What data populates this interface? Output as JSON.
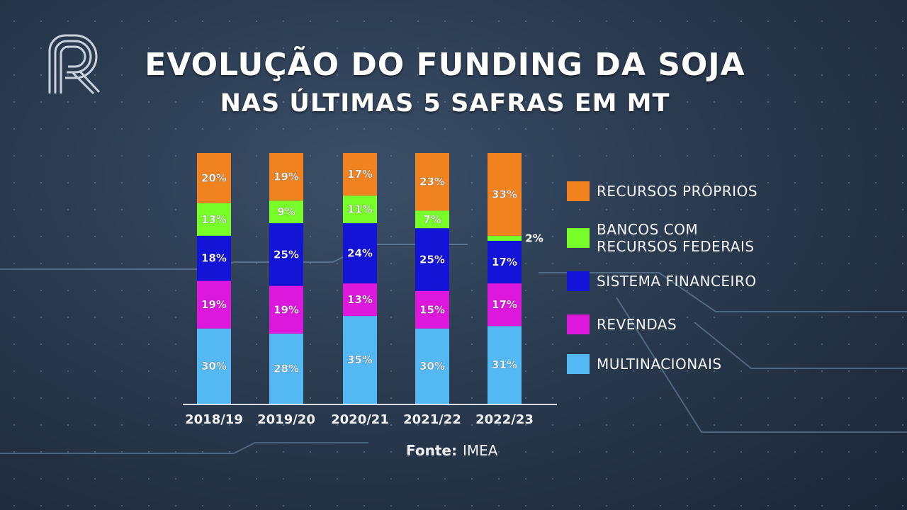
{
  "header": {
    "title_line1": "EVOLUÇÃO DO FUNDING DA SOJA",
    "title_line2": "NAS ÚLTIMAS 5 SAFRAS EM MT"
  },
  "logo": {
    "icon": "r-channel-logo-icon"
  },
  "source": {
    "label": "Fonte:",
    "value": "IMEA"
  },
  "colors": {
    "recursos_proprios": "#f0821f",
    "bancos_federais": "#78ff2a",
    "sistema_financeiro": "#1414d6",
    "revendas": "#dd18dd",
    "multinacionais": "#54b9f2"
  },
  "chart_data": {
    "type": "bar",
    "stacked": true,
    "categories": [
      "2018/19",
      "2019/20",
      "2020/21",
      "2021/22",
      "2022/23"
    ],
    "series": [
      {
        "name": "MULTINACIONAIS",
        "color": "#54b9f2",
        "values": [
          30,
          28,
          35,
          30,
          31
        ],
        "labels": [
          "30%",
          "28%",
          "35%",
          "30%",
          "31%"
        ]
      },
      {
        "name": "REVENDAS",
        "color": "#dd18dd",
        "values": [
          19,
          19,
          13,
          15,
          17
        ],
        "labels": [
          "19%",
          "19%",
          "13%",
          "15%",
          "17%"
        ]
      },
      {
        "name": "SISTEMA FINANCEIRO",
        "color": "#1414d6",
        "values": [
          18,
          25,
          24,
          25,
          17
        ],
        "labels": [
          "18%",
          "25%",
          "24%",
          "25%",
          "17%"
        ]
      },
      {
        "name": "BANCOS COM RECURSOS FEDERAIS",
        "color": "#78ff2a",
        "values": [
          13,
          9,
          11,
          7,
          2
        ],
        "labels": [
          "13%",
          "9%",
          "11%",
          "7%",
          "2%"
        ]
      },
      {
        "name": "RECURSOS PRÓPRIOS",
        "color": "#f0821f",
        "values": [
          20,
          19,
          17,
          23,
          33
        ],
        "labels": [
          "20%",
          "19%",
          "17%",
          "23%",
          "33%"
        ]
      }
    ],
    "legend": [
      {
        "lines": [
          "RECURSOS PRÓPRIOS"
        ],
        "color": "#f0821f"
      },
      {
        "lines": [
          "BANCOS COM",
          "RECURSOS FEDERAIS"
        ],
        "color": "#78ff2a"
      },
      {
        "lines": [
          "SISTEMA FINANCEIRO"
        ],
        "color": "#1414d6"
      },
      {
        "lines": [
          "REVENDAS"
        ],
        "color": "#dd18dd"
      },
      {
        "lines": [
          "MULTINACIONAIS"
        ],
        "color": "#54b9f2"
      }
    ],
    "legend_position": "right",
    "grid": false
  }
}
